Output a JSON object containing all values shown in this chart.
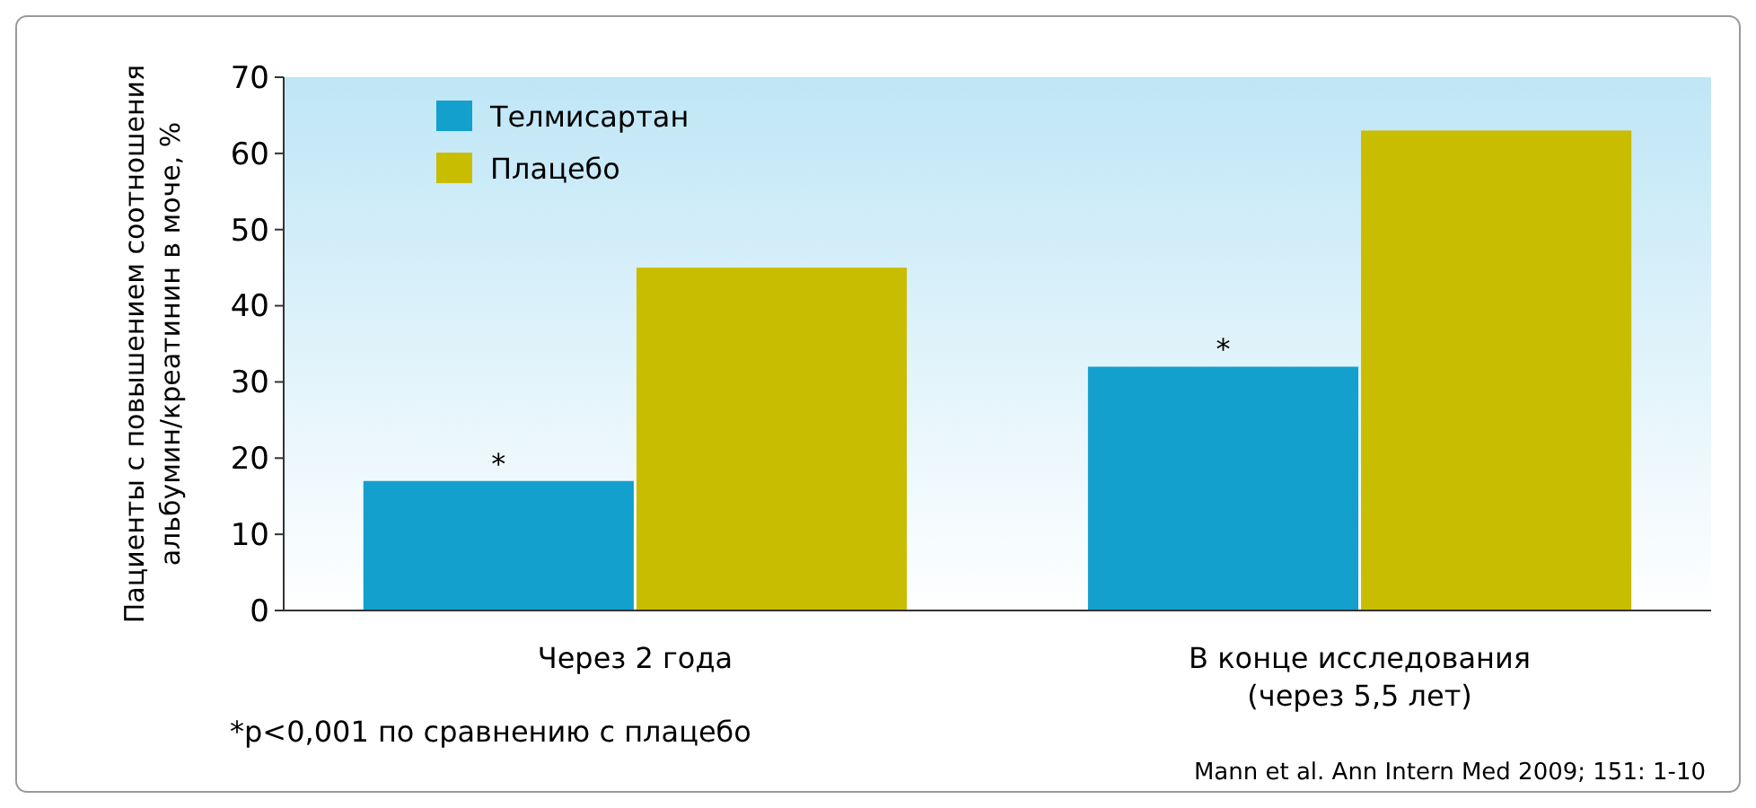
{
  "chart_data": {
    "type": "bar",
    "ylabel": "Пациенты с повышением соотношения\nальбумин/креатинин в моче, %",
    "categories": [
      "Через 2 года",
      "В конце исследования\n(через 5,5 лет)"
    ],
    "series": [
      {
        "name": "Телмисартан",
        "color": "#13a0cd",
        "values": [
          17,
          32
        ]
      },
      {
        "name": "Плацебо",
        "color": "#c8bd00",
        "values": [
          45,
          63
        ]
      }
    ],
    "ylim": [
      0,
      70
    ],
    "yticks": [
      0,
      10,
      20,
      30,
      40,
      50,
      60,
      70
    ],
    "grid": false,
    "legend": "top left",
    "annotations": [
      "*",
      "*",
      "*p<0,001 по сравнению с плацебо",
      "Mann et al. Ann Intern Med 2009; 151: 1-10"
    ]
  }
}
